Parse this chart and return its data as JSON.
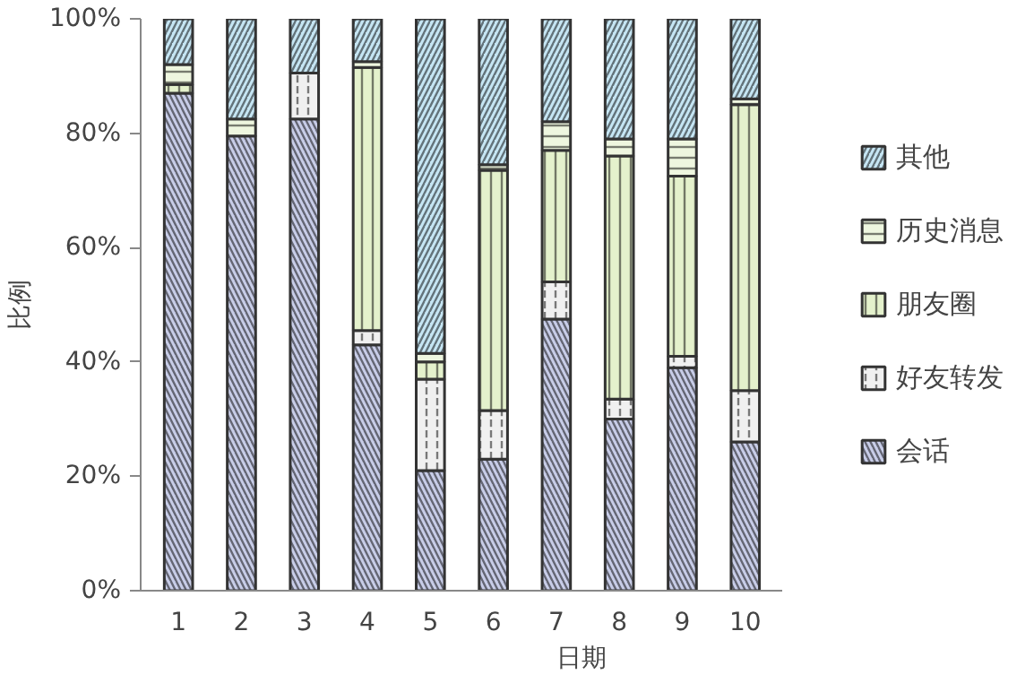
{
  "chart_data": {
    "type": "bar",
    "stacked": true,
    "xlabel": "日期",
    "ylabel": "比例",
    "categories": [
      "1",
      "2",
      "3",
      "4",
      "5",
      "6",
      "7",
      "8",
      "9",
      "10"
    ],
    "series": [
      {
        "name": "会话",
        "color": "#c8cde8",
        "values": [
          87,
          79.5,
          82.5,
          43,
          21,
          23,
          47.5,
          30,
          39,
          26
        ]
      },
      {
        "name": "好友转发",
        "color": "#f0f0f0",
        "values": [
          0,
          0,
          8,
          2.5,
          16,
          8.5,
          6.5,
          3.5,
          2,
          9
        ]
      },
      {
        "name": "朋友圈",
        "color": "#e4f1cc",
        "values": [
          1.5,
          0,
          0,
          46,
          3,
          42,
          23,
          42.5,
          31.5,
          50
        ]
      },
      {
        "name": "历史消息",
        "color": "#eef6df",
        "values": [
          3.5,
          3,
          0,
          1,
          1.5,
          1,
          5,
          3,
          6.5,
          1
        ]
      },
      {
        "name": "其他",
        "color": "#c6e6f4",
        "values": [
          8,
          17.5,
          9.5,
          7.5,
          58.5,
          25.5,
          18,
          21,
          21,
          14
        ]
      }
    ],
    "ylim": [
      0,
      100
    ],
    "yticks": [
      {
        "value": 0,
        "label": "0%"
      },
      {
        "value": 20,
        "label": "20%"
      },
      {
        "value": 40,
        "label": "40%"
      },
      {
        "value": 60,
        "label": "60%"
      },
      {
        "value": 80,
        "label": "80%"
      },
      {
        "value": 100,
        "label": "100%"
      }
    ],
    "legend": "right",
    "grid": false
  }
}
